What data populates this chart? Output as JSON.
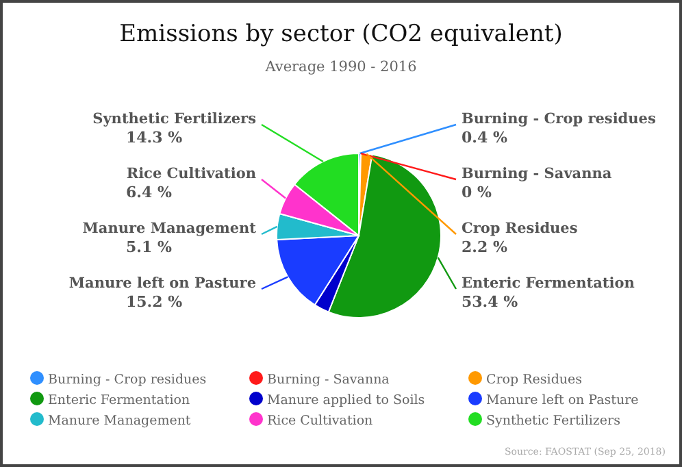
{
  "chart_data": {
    "type": "pie",
    "title": "Emissions by sector (CO2 equivalent)",
    "subtitle": "Average 1990 - 2016",
    "categories": [
      "Burning - Crop residues",
      "Burning - Savanna",
      "Crop Residues",
      "Enteric Fermentation",
      "Manure applied to Soils",
      "Manure left on Pasture",
      "Manure Management",
      "Rice Cultivation",
      "Synthetic Fertilizers"
    ],
    "values": [
      0.4,
      0,
      2.2,
      53.4,
      3.0,
      15.2,
      5.1,
      6.4,
      14.3
    ],
    "value_labels": [
      "0.4 %",
      "0 %",
      "2.2 %",
      "53.4 %",
      null,
      "15.2 %",
      "5.1 %",
      "6.4 %",
      "14.3 %"
    ],
    "colors": [
      "#2f8fff",
      "#ff1a1a",
      "#ff9900",
      "#119911",
      "#0000cc",
      "#1a3cff",
      "#22bbcc",
      "#ff33cc",
      "#22dd22"
    ],
    "legend": "bottom",
    "annotations": [
      "Source: FAOSTAT (Sep 25, 2018)"
    ]
  }
}
